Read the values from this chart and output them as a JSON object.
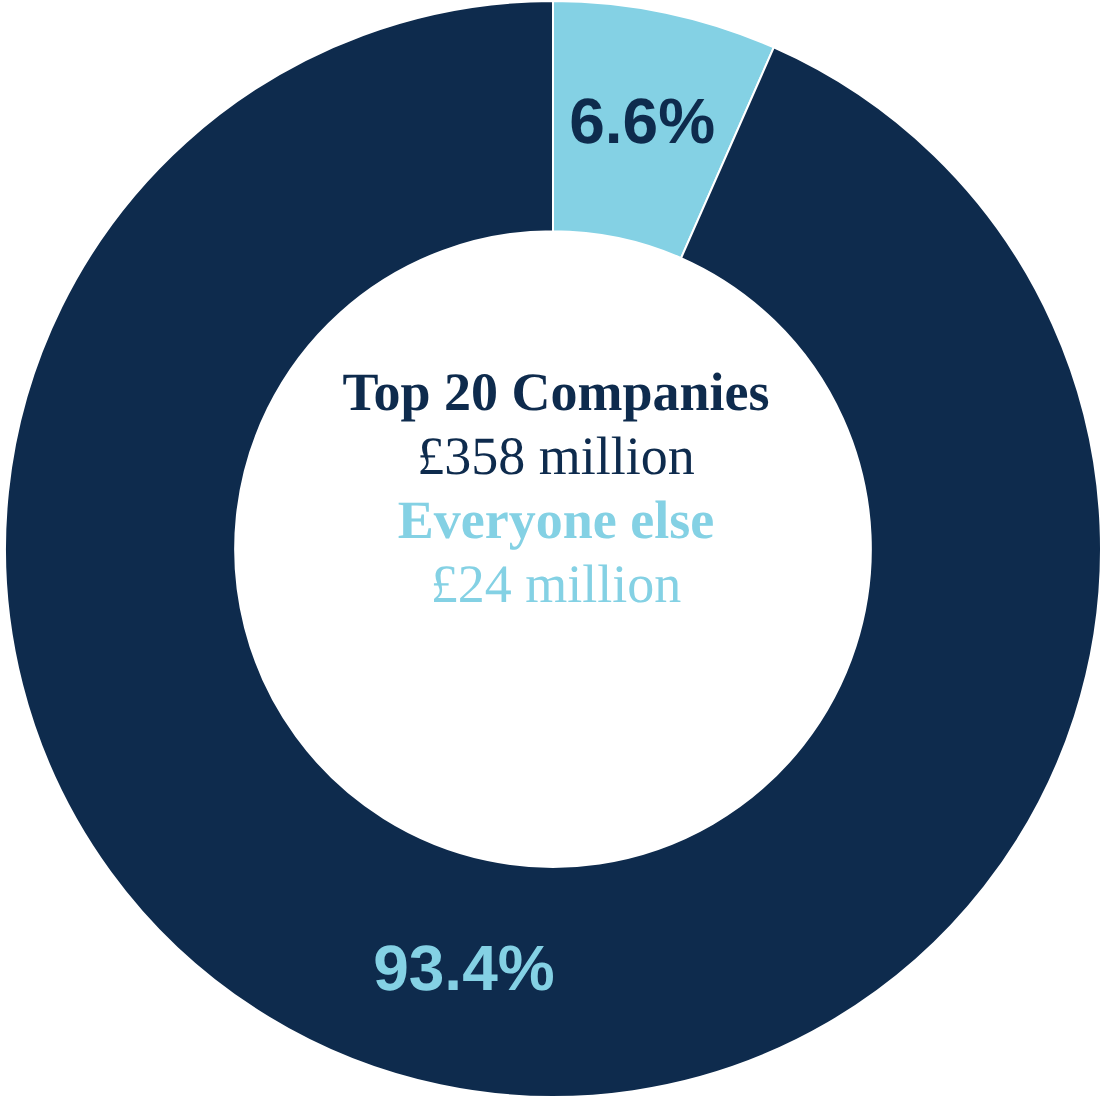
{
  "chart_data": {
    "type": "donut",
    "categories": [
      "Everyone else",
      "Top 20 Companies"
    ],
    "values": [
      6.6,
      93.4
    ],
    "colors": [
      "#84d1e4",
      "#0e2b4d"
    ],
    "value_labels": [
      "6.6%",
      "93.4%"
    ],
    "annotations": [
      "£24 million",
      "£358 million"
    ],
    "legend": false
  }
}
